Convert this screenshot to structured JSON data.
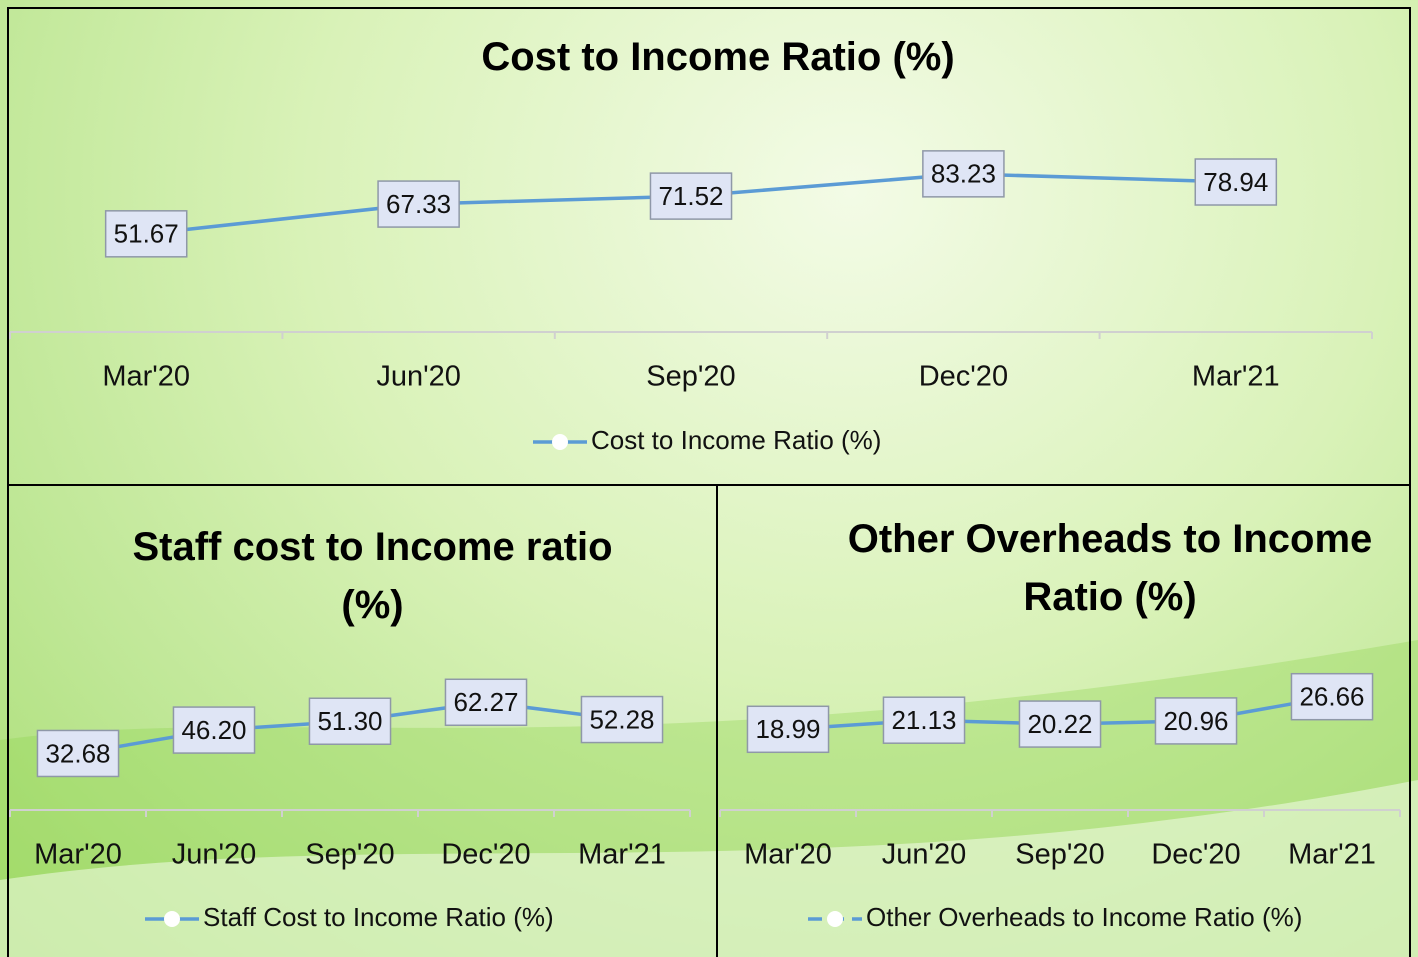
{
  "chart_data": [
    {
      "type": "line",
      "title": "Cost to Income Ratio (%)",
      "categories": [
        "Mar'20",
        "Jun'20",
        "Sep'20",
        "Dec'20",
        "Mar'21"
      ],
      "series": [
        {
          "name": "Cost to Income Ratio (%)",
          "color": "#5b9bd5",
          "values": [
            51.67,
            67.33,
            71.52,
            83.23,
            78.94
          ],
          "value_labels": [
            "51.67",
            "67.33",
            "71.52",
            "83.23",
            "78.94"
          ]
        }
      ],
      "ylim": [
        0,
        100
      ],
      "legend": "bottom"
    },
    {
      "type": "line",
      "title": "Staff cost to Income ratio (%)",
      "categories": [
        "Mar'20",
        "Jun'20",
        "Sep'20",
        "Dec'20",
        "Mar'21"
      ],
      "series": [
        {
          "name": "Staff Cost to Income Ratio (%)",
          "color": "#5b9bd5",
          "values": [
            32.68,
            46.2,
            51.3,
            62.27,
            52.28
          ],
          "value_labels": [
            "32.68",
            "46.20",
            "51.30",
            "62.27",
            "52.28"
          ]
        }
      ],
      "ylim": [
        0,
        100
      ],
      "legend": "bottom"
    },
    {
      "type": "line",
      "title": "Other Overheads to Income Ratio (%)",
      "categories": [
        "Mar'20",
        "Jun'20",
        "Sep'20",
        "Dec'20",
        "Mar'21"
      ],
      "series": [
        {
          "name": "Other Overheads to Income Ratio (%)",
          "color": "#5b9bd5",
          "values": [
            18.99,
            21.13,
            20.22,
            20.96,
            26.66
          ],
          "value_labels": [
            "18.99",
            "21.13",
            "20.22",
            "20.96",
            "26.66"
          ]
        }
      ],
      "ylim": [
        0,
        40
      ],
      "legend": "bottom",
      "line_style": "dashed"
    }
  ]
}
